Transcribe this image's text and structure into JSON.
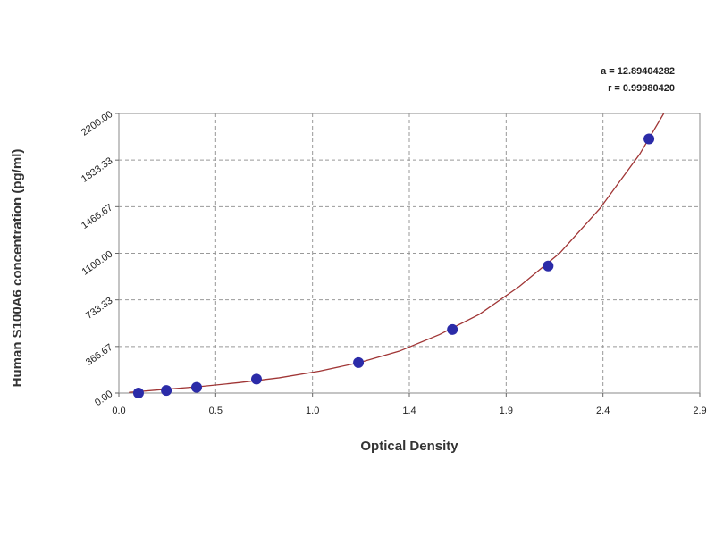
{
  "chart_data": {
    "type": "scatter",
    "annotations": [
      "a = 12.89404282",
      "r = 0.99980420"
    ],
    "xlabel": "Optical Density",
    "ylabel": "Human S100A6 concentration (pg/ml)",
    "xlim": [
      0,
      2.9
    ],
    "xticks": [
      {
        "value": 0,
        "label": "0.0"
      },
      {
        "value": 0.4833,
        "label": "0.5"
      },
      {
        "value": 0.9667,
        "label": "1.0"
      },
      {
        "value": 1.45,
        "label": "1.4"
      },
      {
        "value": 1.9333,
        "label": "1.9"
      },
      {
        "value": 2.4167,
        "label": "2.4"
      },
      {
        "value": 2.9,
        "label": "2.9"
      }
    ],
    "ylim": [
      0,
      2200
    ],
    "yticks": [
      {
        "value": 0,
        "label": "0.00"
      },
      {
        "value": 366.67,
        "label": "366.67"
      },
      {
        "value": 733.33,
        "label": "733.33"
      },
      {
        "value": 1100,
        "label": "1100.00"
      },
      {
        "value": 1466.67,
        "label": "1466.67"
      },
      {
        "value": 1833.33,
        "label": "1833.33"
      },
      {
        "value": 2200,
        "label": "2200.00"
      }
    ],
    "grid": true,
    "points": {
      "color": "#2b2ba8",
      "x": [
        0.098,
        0.237,
        0.388,
        0.687,
        1.196,
        1.665,
        2.143,
        2.646
      ],
      "values": [
        0,
        20,
        45,
        110,
        240,
        500,
        1000,
        2000
      ]
    },
    "curve": {
      "color": "#a03535",
      "x": [
        0.05,
        0.2,
        0.4,
        0.6,
        0.8,
        1.0,
        1.2,
        1.4,
        1.6,
        1.8,
        2.0,
        2.2,
        2.4,
        2.6,
        2.72
      ],
      "values": [
        5,
        25,
        50,
        82,
        120,
        172,
        240,
        330,
        460,
        620,
        840,
        1100,
        1450,
        1880,
        2200
      ]
    }
  }
}
